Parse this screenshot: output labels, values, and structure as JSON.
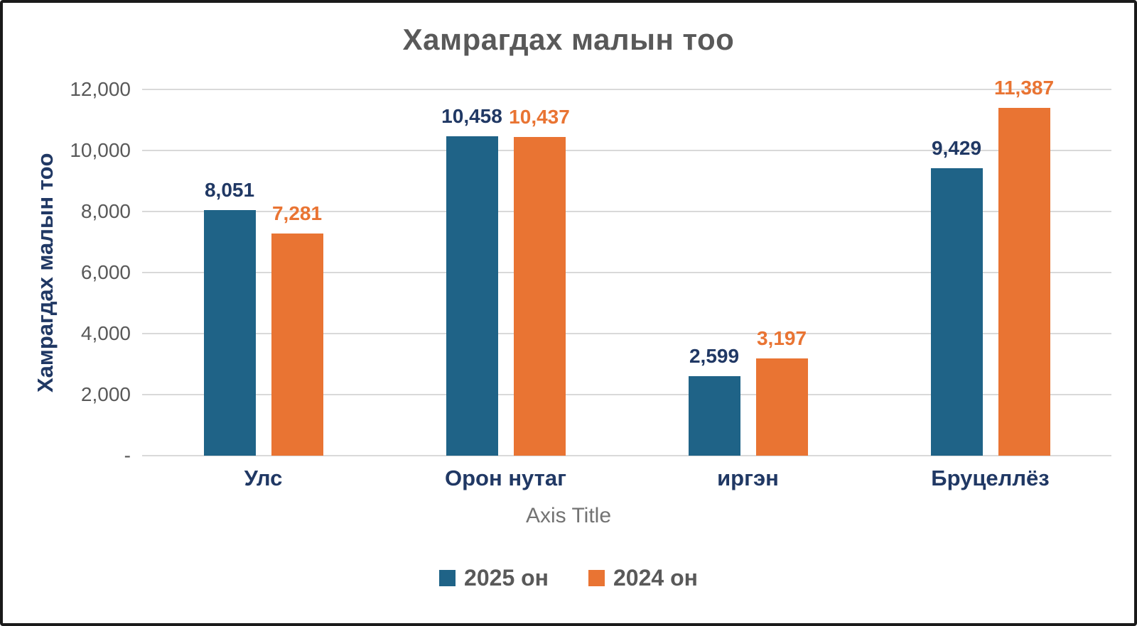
{
  "chart_data": {
    "type": "bar",
    "title": "Хамрагдах малын тоо",
    "xlabel": "Axis Title",
    "ylabel": "Хамрагдах малын тоо",
    "categories": [
      "Улс",
      "Орон нутаг",
      "иргэн",
      "Бруцеллёз"
    ],
    "series": [
      {
        "name": "2025 он",
        "color": "#1f6387",
        "label_color": "#203864",
        "values": [
          8051,
          10458,
          2599,
          9429
        ],
        "labels": [
          "8,051",
          "10,458",
          "2,599",
          "9,429"
        ]
      },
      {
        "name": "2024 он",
        "color": "#e97433",
        "label_color": "#e97433",
        "values": [
          7281,
          10437,
          3197,
          11387
        ],
        "labels": [
          "7,281",
          "10,437",
          "3,197",
          "11,387"
        ]
      }
    ],
    "ylim": [
      0,
      12000
    ],
    "yticks": [
      {
        "value": 0,
        "label": "-"
      },
      {
        "value": 2000,
        "label": "2,000"
      },
      {
        "value": 4000,
        "label": "4,000"
      },
      {
        "value": 6000,
        "label": "6,000"
      },
      {
        "value": 8000,
        "label": "8,000"
      },
      {
        "value": 10000,
        "label": "10,000"
      },
      {
        "value": 12000,
        "label": "12,000"
      }
    ],
    "grid": true,
    "legend_position": "bottom"
  },
  "colors": {
    "title_text": "#595959",
    "tick_text": "#595959",
    "gridline": "#d9d9d9",
    "category_text": "#203864",
    "axis_title_text": "#737373",
    "legend_text": "#595959",
    "frame_border": "#1a1a1a",
    "background": "#ffffff"
  }
}
